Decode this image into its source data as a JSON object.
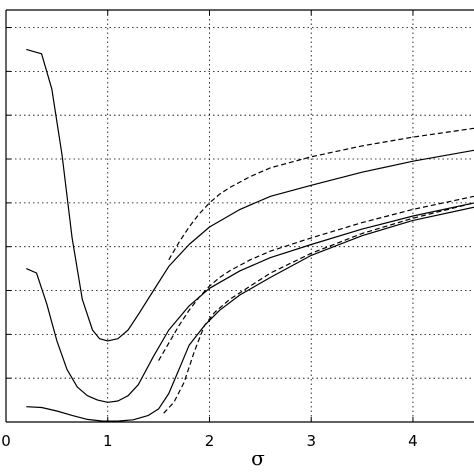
{
  "chart_data": {
    "type": "line",
    "title": "",
    "xlabel": "σ",
    "ylabel": "",
    "xlim": [
      0,
      4.6
    ],
    "ylim": [
      0,
      9.4
    ],
    "x_ticks": [
      0,
      1,
      2,
      3,
      4
    ],
    "x_tick_labels": [
      "0",
      "1",
      "2",
      "3",
      "4"
    ],
    "y_ticks": [
      1,
      2,
      3,
      4,
      5,
      6,
      7,
      8,
      9
    ],
    "grid": true,
    "series": [
      {
        "style": "solid",
        "color": "#000000",
        "x": [
          0.2,
          0.35,
          0.45,
          0.55,
          0.65,
          0.75,
          0.85,
          0.92,
          1.0,
          1.1,
          1.2,
          1.3,
          1.45,
          1.6,
          1.8,
          2.0,
          2.3,
          2.6,
          3.0,
          3.5,
          4.0,
          4.6
        ],
        "y": [
          8.5,
          8.4,
          7.6,
          6.1,
          4.2,
          2.8,
          2.1,
          1.9,
          1.85,
          1.9,
          2.1,
          2.45,
          3.0,
          3.55,
          4.05,
          4.45,
          4.85,
          5.15,
          5.4,
          5.7,
          5.95,
          6.2
        ]
      },
      {
        "style": "solid",
        "color": "#000000",
        "x": [
          0.2,
          0.3,
          0.4,
          0.5,
          0.6,
          0.7,
          0.8,
          0.9,
          1.0,
          1.1,
          1.2,
          1.3,
          1.45,
          1.6,
          1.8,
          2.0,
          2.3,
          2.6,
          3.0,
          3.5,
          4.0,
          4.6
        ],
        "y": [
          3.5,
          3.4,
          2.7,
          1.85,
          1.2,
          0.8,
          0.6,
          0.5,
          0.45,
          0.48,
          0.6,
          0.85,
          1.5,
          2.1,
          2.65,
          3.05,
          3.45,
          3.75,
          4.05,
          4.4,
          4.7,
          5.0
        ]
      },
      {
        "style": "solid",
        "color": "#000000",
        "x": [
          0.2,
          0.35,
          0.5,
          0.65,
          0.8,
          0.95,
          1.1,
          1.25,
          1.4,
          1.5,
          1.6,
          1.7,
          1.8,
          1.95,
          2.1,
          2.3,
          2.6,
          3.0,
          3.5,
          4.0,
          4.6
        ],
        "y": [
          0.35,
          0.33,
          0.25,
          0.15,
          0.06,
          0.02,
          0.02,
          0.05,
          0.15,
          0.3,
          0.65,
          1.2,
          1.75,
          2.2,
          2.55,
          2.9,
          3.3,
          3.8,
          4.25,
          4.6,
          4.9
        ]
      },
      {
        "style": "dashed",
        "color": "#000000",
        "x": [
          1.6,
          1.7,
          1.8,
          1.9,
          2.0,
          2.1,
          2.2,
          2.4,
          2.6,
          3.0,
          3.5,
          4.0,
          4.6
        ],
        "y": [
          3.7,
          4.1,
          4.45,
          4.75,
          5.0,
          5.2,
          5.35,
          5.6,
          5.8,
          6.05,
          6.3,
          6.5,
          6.7
        ]
      },
      {
        "style": "dashed",
        "color": "#000000",
        "x": [
          1.5,
          1.6,
          1.7,
          1.8,
          1.9,
          2.0,
          2.1,
          2.2,
          2.4,
          2.6,
          3.0,
          3.5,
          4.0,
          4.6
        ],
        "y": [
          1.4,
          1.8,
          2.2,
          2.55,
          2.85,
          3.1,
          3.3,
          3.45,
          3.7,
          3.9,
          4.2,
          4.55,
          4.85,
          5.15
        ]
      },
      {
        "style": "dashed",
        "color": "#000000",
        "x": [
          1.55,
          1.65,
          1.75,
          1.85,
          1.95,
          2.05,
          2.2,
          2.4,
          2.6,
          3.0,
          3.5,
          4.0,
          4.6
        ],
        "y": [
          0.2,
          0.45,
          0.9,
          1.6,
          2.2,
          2.5,
          2.8,
          3.1,
          3.4,
          3.85,
          4.3,
          4.65,
          5.0
        ]
      }
    ]
  }
}
